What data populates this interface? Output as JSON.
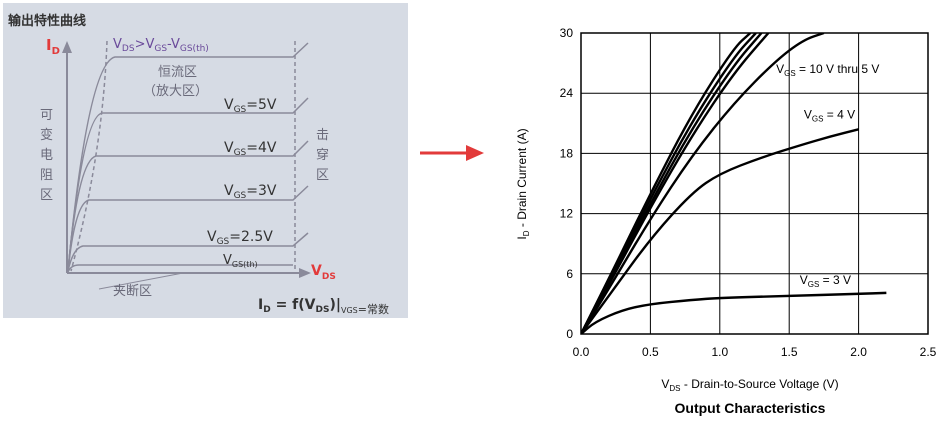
{
  "left": {
    "title": "输出特性曲线",
    "y_axis_label": "I",
    "y_axis_sub": "D",
    "x_axis_label": "V",
    "x_axis_sub": "DS",
    "boundary_label_main": "V",
    "boundary_label_sub1": "DS",
    "boundary_label_mid": ">V",
    "boundary_label_sub2": "GS",
    "boundary_label_mid2": "-V",
    "boundary_label_sub3": "GS(th)",
    "region_const_1": "恒流区",
    "region_const_2": "（放大区）",
    "region_variable": [
      "可",
      "变",
      "电",
      "阻",
      "区"
    ],
    "region_breakdown": [
      "击",
      "穿",
      "区"
    ],
    "region_pinch": "夹断区",
    "formula_main": "I",
    "formula_sub1": "D",
    "formula_mid": " = f(V",
    "formula_sub2": "DS",
    "formula_end": ")|",
    "formula_sub3": "VGS",
    "formula_tail": "=常数",
    "curve_labels": [
      {
        "main": "V",
        "sub": "GS",
        "tail": "=5V",
        "level": 5
      },
      {
        "main": "V",
        "sub": "GS",
        "tail": "=4V",
        "level": 4
      },
      {
        "main": "V",
        "sub": "GS",
        "tail": "=3V",
        "level": 3
      },
      {
        "main": "V",
        "sub": "GS",
        "tail": "=2.5V",
        "level": 2.5
      },
      {
        "main": "V",
        "sub": "GS(th)",
        "tail": "",
        "level": 0
      }
    ]
  },
  "chart_data": {
    "type": "line",
    "title": "Output Characteristics",
    "xlabel_main": "V",
    "xlabel_sub": "DS",
    "xlabel_tail": " - Drain-to-Source Voltage (V)",
    "ylabel_main": "I",
    "ylabel_sub": "D",
    "ylabel_tail": " - Drain Current (A)",
    "xlim": [
      0,
      2.5
    ],
    "ylim": [
      0,
      30
    ],
    "xticks": [
      "0.0",
      "0.5",
      "1.0",
      "1.5",
      "2.0",
      "2.5"
    ],
    "yticks": [
      "0",
      "6",
      "12",
      "18",
      "24",
      "30"
    ],
    "grid": true,
    "annotations": [
      {
        "main": "V",
        "sub": "GS",
        "tail": " = 10 V thru 5 V",
        "x": 1.55,
        "y": 26
      },
      {
        "main": "V",
        "sub": "GS",
        "tail": " = 4 V",
        "x": 1.75,
        "y": 21.5
      },
      {
        "main": "V",
        "sub": "GS",
        "tail": " = 3 V",
        "x": 1.72,
        "y": 5.0
      }
    ],
    "series": [
      {
        "x": [
          0,
          0.2,
          0.5,
          0.8,
          1.1,
          1.22
        ],
        "y": [
          0,
          5.5,
          14,
          22,
          28.5,
          30
        ]
      },
      {
        "x": [
          0,
          0.2,
          0.5,
          0.8,
          1.1,
          1.26
        ],
        "y": [
          0,
          5.3,
          13.5,
          21.2,
          27.6,
          30
        ]
      },
      {
        "x": [
          0,
          0.2,
          0.5,
          0.8,
          1.1,
          1.3
        ],
        "y": [
          0,
          5.1,
          13,
          20.5,
          26.8,
          30
        ]
      },
      {
        "x": [
          0,
          0.2,
          0.5,
          0.8,
          1.1,
          1.35
        ],
        "y": [
          0,
          4.9,
          12.6,
          19.8,
          26,
          30
        ]
      },
      {
        "x": [
          0,
          0.2,
          0.5,
          0.8,
          1.1,
          1.4,
          1.6,
          1.75
        ],
        "y": [
          0,
          4.5,
          11.5,
          17.8,
          23,
          27.2,
          29.3,
          30
        ]
      },
      {
        "x": [
          0,
          0.2,
          0.5,
          0.8,
          1.0,
          1.3,
          1.6,
          1.8,
          2.0
        ],
        "y": [
          0,
          3.8,
          9.5,
          14.1,
          16.0,
          17.6,
          18.9,
          19.7,
          20.4
        ]
      },
      {
        "x": [
          0,
          0.1,
          0.3,
          0.5,
          0.8,
          1.0,
          1.5,
          2.0,
          2.2
        ],
        "y": [
          0,
          1.2,
          2.4,
          3.0,
          3.4,
          3.6,
          3.8,
          4.0,
          4.1
        ]
      }
    ]
  }
}
